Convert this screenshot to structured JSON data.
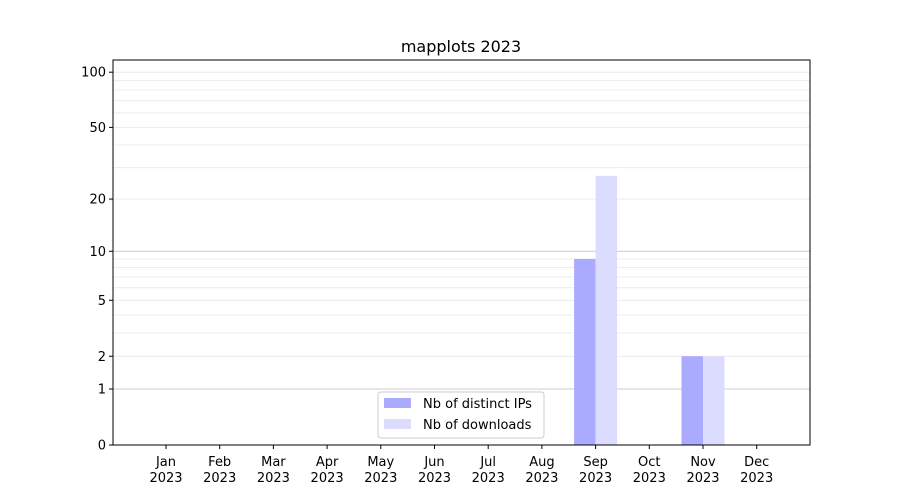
{
  "chart_data": {
    "type": "bar",
    "title": "mapplots 2023",
    "xlabel": "",
    "ylabel": "",
    "y_scale": "log(1+y)",
    "ylim": [
      0,
      116
    ],
    "yticks": [
      0,
      1,
      2,
      5,
      10,
      20,
      50,
      100
    ],
    "grid": true,
    "legend_position": "bottom-center",
    "categories": [
      [
        "Jan",
        "2023"
      ],
      [
        "Feb",
        "2023"
      ],
      [
        "Mar",
        "2023"
      ],
      [
        "Apr",
        "2023"
      ],
      [
        "May",
        "2023"
      ],
      [
        "Jun",
        "2023"
      ],
      [
        "Jul",
        "2023"
      ],
      [
        "Aug",
        "2023"
      ],
      [
        "Sep",
        "2023"
      ],
      [
        "Oct",
        "2023"
      ],
      [
        "Nov",
        "2023"
      ],
      [
        "Dec",
        "2023"
      ]
    ],
    "series": [
      {
        "name": "Nb of distinct IPs",
        "color": "#aaaaff",
        "values": [
          0,
          0,
          0,
          0,
          0,
          0,
          0,
          0,
          9,
          0,
          2,
          0
        ]
      },
      {
        "name": "Nb of downloads",
        "color": "#dcdcff",
        "values": [
          0,
          0,
          0,
          0,
          0,
          0,
          0,
          0,
          27,
          0,
          2,
          0
        ]
      }
    ]
  }
}
